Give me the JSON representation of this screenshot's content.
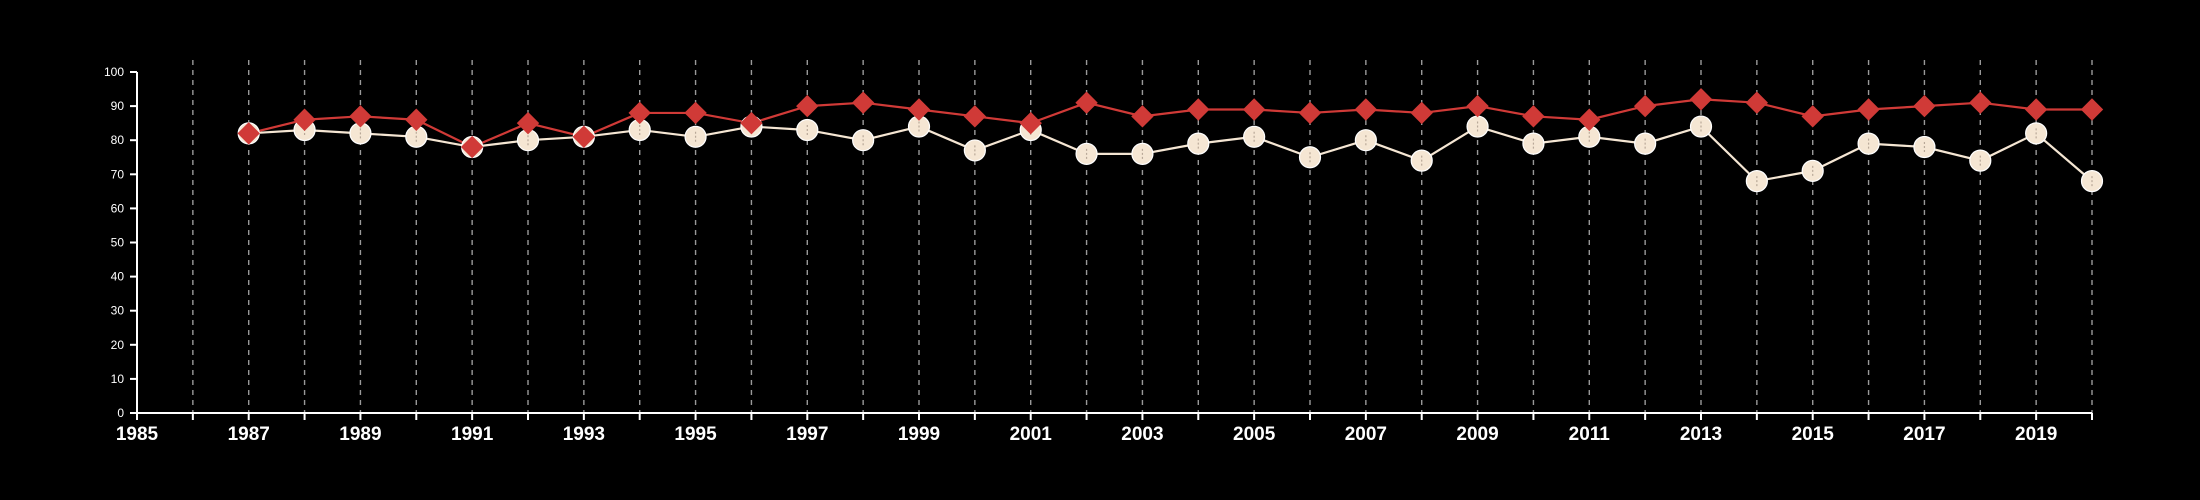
{
  "chart_data": {
    "type": "line",
    "title": "",
    "xlabel": "",
    "ylabel": "",
    "xlim": [
      1985,
      2020
    ],
    "ylim": [
      0,
      100
    ],
    "x_ticks": [
      1985,
      1987,
      1989,
      1991,
      1993,
      1995,
      1997,
      1999,
      2001,
      2003,
      2005,
      2007,
      2009,
      2011,
      2013,
      2015,
      2017,
      2019
    ],
    "y_ticks": [
      0,
      10,
      20,
      30,
      40,
      50,
      60,
      70,
      80,
      90,
      100
    ],
    "grid": {
      "vertical": true,
      "horizontal": false,
      "style": "dashed"
    },
    "legend": "none",
    "x": [
      1987,
      1988,
      1989,
      1990,
      1991,
      1992,
      1993,
      1994,
      1995,
      1996,
      1997,
      1998,
      1999,
      2000,
      2001,
      2002,
      2003,
      2004,
      2005,
      2006,
      2007,
      2008,
      2009,
      2010,
      2011,
      2012,
      2013,
      2014,
      2015,
      2016,
      2017,
      2018,
      2019,
      2020
    ],
    "series": [
      {
        "color": "#f5e6d3",
        "marker": "circle",
        "values": [
          82,
          83,
          82,
          81,
          78,
          80,
          81,
          83,
          81,
          84,
          83,
          80,
          84,
          77,
          83,
          76,
          76,
          79,
          81,
          75,
          80,
          74,
          84,
          79,
          81,
          79,
          84,
          68,
          71,
          79,
          78,
          74,
          82,
          68
        ]
      },
      {
        "color": "#d03a37",
        "marker": "diamond",
        "values": [
          82,
          86,
          87,
          86,
          78,
          85,
          81,
          88,
          88,
          85,
          90,
          91,
          89,
          87,
          85,
          91,
          87,
          89,
          89,
          88,
          89,
          88,
          90,
          87,
          86,
          90,
          92,
          91,
          87,
          89,
          90,
          91,
          89,
          89
        ]
      }
    ]
  }
}
